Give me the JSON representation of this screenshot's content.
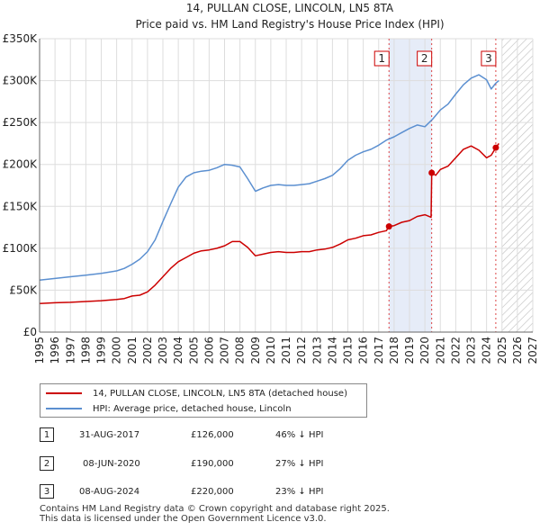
{
  "chart_data": {
    "type": "line",
    "title": "14, PULLAN CLOSE, LINCOLN, LN5 8TA",
    "subtitle": "Price paid vs. HM Land Registry's House Price Index (HPI)",
    "xlabel": "",
    "ylabel": "",
    "xlim": [
      1995,
      2027
    ],
    "ylim": [
      0,
      350000
    ],
    "x_ticks": [
      "1995",
      "1996",
      "1997",
      "1998",
      "1999",
      "2000",
      "2001",
      "2002",
      "2003",
      "2004",
      "2005",
      "2006",
      "2007",
      "2008",
      "2009",
      "2010",
      "2011",
      "2012",
      "2013",
      "2014",
      "2015",
      "2016",
      "2017",
      "2018",
      "2019",
      "2020",
      "2021",
      "2022",
      "2023",
      "2024",
      "2025",
      "2026",
      "2027"
    ],
    "y_ticks": [
      {
        "value": 0,
        "label": "£0"
      },
      {
        "value": 50000,
        "label": "£50K"
      },
      {
        "value": 100000,
        "label": "£100K"
      },
      {
        "value": 150000,
        "label": "£150K"
      },
      {
        "value": 200000,
        "label": "£200K"
      },
      {
        "value": 250000,
        "label": "£250K"
      },
      {
        "value": 300000,
        "label": "£300K"
      },
      {
        "value": 350000,
        "label": "£350K"
      }
    ],
    "grid": true,
    "series": [
      {
        "name": "14, PULLAN CLOSE, LINCOLN, LN5 8TA (detached house)",
        "color": "#cc0000",
        "x": [
          1995.0,
          1996.0,
          1997.0,
          1998.0,
          1999.0,
          2000.0,
          2000.5,
          2001.0,
          2001.5,
          2002.0,
          2002.5,
          2003.0,
          2003.5,
          2004.0,
          2004.5,
          2005.0,
          2005.5,
          2006.0,
          2006.5,
          2007.0,
          2007.5,
          2008.0,
          2008.5,
          2009.0,
          2009.5,
          2010.0,
          2010.5,
          2011.0,
          2011.5,
          2012.0,
          2012.5,
          2013.0,
          2013.5,
          2014.0,
          2014.5,
          2015.0,
          2015.5,
          2016.0,
          2016.5,
          2017.0,
          2017.5,
          2017.67,
          2018.0,
          2018.5,
          2019.0,
          2019.5,
          2020.0,
          2020.4,
          2020.44,
          2020.7,
          2021.0,
          2021.5,
          2022.0,
          2022.5,
          2023.0,
          2023.5,
          2024.0,
          2024.3,
          2024.6,
          2024.8
        ],
        "y": [
          34000,
          35000,
          35500,
          36500,
          37500,
          39000,
          40000,
          43000,
          44000,
          48000,
          56000,
          66000,
          76000,
          84000,
          89000,
          94000,
          97000,
          98000,
          100000,
          103000,
          108000,
          108000,
          101000,
          91000,
          93000,
          95000,
          96000,
          95000,
          95000,
          96000,
          96000,
          98000,
          99000,
          101000,
          105000,
          110000,
          112000,
          115000,
          116000,
          119000,
          121000,
          126000,
          127000,
          131000,
          133000,
          138000,
          140000,
          137000,
          190000,
          187000,
          194000,
          198000,
          208000,
          218000,
          222000,
          217000,
          208000,
          211000,
          220000,
          225000
        ]
      },
      {
        "name": "HPI: Average price, detached house, Lincoln",
        "color": "#5b8fd0",
        "x": [
          1995.0,
          1996.0,
          1997.0,
          1998.0,
          1999.0,
          2000.0,
          2000.5,
          2001.0,
          2001.5,
          2002.0,
          2002.5,
          2003.0,
          2003.5,
          2004.0,
          2004.5,
          2005.0,
          2005.5,
          2006.0,
          2006.5,
          2007.0,
          2007.5,
          2008.0,
          2008.5,
          2009.0,
          2009.5,
          2010.0,
          2010.5,
          2011.0,
          2011.5,
          2012.0,
          2012.5,
          2013.0,
          2013.5,
          2014.0,
          2014.5,
          2015.0,
          2015.5,
          2016.0,
          2016.5,
          2017.0,
          2017.5,
          2018.0,
          2018.5,
          2019.0,
          2019.5,
          2020.0,
          2020.5,
          2021.0,
          2021.5,
          2022.0,
          2022.5,
          2023.0,
          2023.5,
          2024.0,
          2024.3,
          2024.6,
          2024.8
        ],
        "y": [
          62000,
          64000,
          66000,
          68000,
          70000,
          73000,
          76000,
          81000,
          87000,
          96000,
          110000,
          132000,
          153000,
          173000,
          185000,
          190000,
          192000,
          193000,
          196000,
          200000,
          199000,
          197000,
          183000,
          168000,
          172000,
          175000,
          176000,
          175000,
          175000,
          176000,
          177000,
          180000,
          183000,
          187000,
          195000,
          205000,
          211000,
          215000,
          218000,
          223000,
          229000,
          233000,
          238000,
          243000,
          247000,
          245000,
          254000,
          265000,
          272000,
          284000,
          295000,
          303000,
          307000,
          301000,
          290000,
          297000,
          300000
        ]
      }
    ],
    "sales": [
      {
        "id": "1",
        "x": 2017.67,
        "y": 126000
      },
      {
        "id": "2",
        "x": 2020.44,
        "y": 190000
      },
      {
        "id": "3",
        "x": 2024.6,
        "y": 220000
      }
    ],
    "highlight_range": [
      2017.67,
      2020.44
    ],
    "future_start": 2025.0
  },
  "legend": {
    "property_label": "14, PULLAN CLOSE, LINCOLN, LN5 8TA (detached house)",
    "hpi_label": "HPI: Average price, detached house, Lincoln"
  },
  "transactions": [
    {
      "id": "1",
      "date": "31-AUG-2017",
      "price": "£126,000",
      "hpi": "46% ↓ HPI"
    },
    {
      "id": "2",
      "date": "08-JUN-2020",
      "price": "£190,000",
      "hpi": "27% ↓ HPI"
    },
    {
      "id": "3",
      "date": "08-AUG-2024",
      "price": "£220,000",
      "hpi": "23% ↓ HPI"
    }
  ],
  "footer": {
    "line1": "Contains HM Land Registry data © Crown copyright and database right 2025.",
    "line2": "This data is licensed under the Open Government Licence v3.0."
  }
}
